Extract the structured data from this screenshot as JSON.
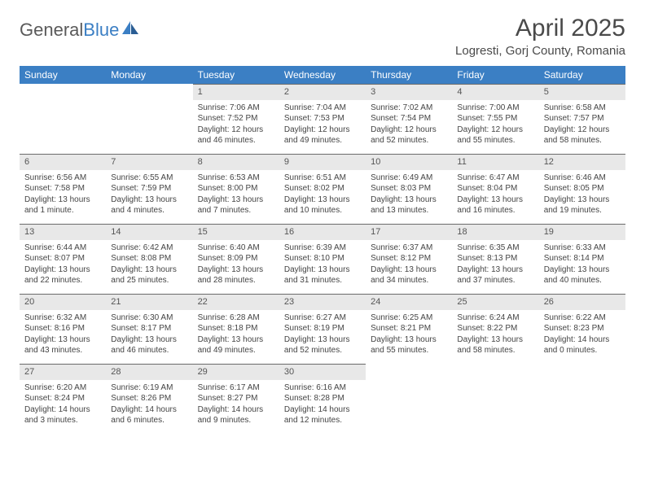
{
  "logo": {
    "text_general": "General",
    "text_blue": "Blue"
  },
  "title": "April 2025",
  "location": "Logresti, Gorj County, Romania",
  "colors": {
    "header_bg": "#3b7fc4",
    "header_text": "#ffffff",
    "daynum_bg": "#e8e8e8",
    "daynum_border": "#6b6b6b",
    "body_text": "#444444",
    "page_bg": "#ffffff"
  },
  "weekdays": [
    "Sunday",
    "Monday",
    "Tuesday",
    "Wednesday",
    "Thursday",
    "Friday",
    "Saturday"
  ],
  "weeks": [
    [
      null,
      null,
      {
        "n": "1",
        "sr": "7:06 AM",
        "ss": "7:52 PM",
        "dl": "12 hours and 46 minutes."
      },
      {
        "n": "2",
        "sr": "7:04 AM",
        "ss": "7:53 PM",
        "dl": "12 hours and 49 minutes."
      },
      {
        "n": "3",
        "sr": "7:02 AM",
        "ss": "7:54 PM",
        "dl": "12 hours and 52 minutes."
      },
      {
        "n": "4",
        "sr": "7:00 AM",
        "ss": "7:55 PM",
        "dl": "12 hours and 55 minutes."
      },
      {
        "n": "5",
        "sr": "6:58 AM",
        "ss": "7:57 PM",
        "dl": "12 hours and 58 minutes."
      }
    ],
    [
      {
        "n": "6",
        "sr": "6:56 AM",
        "ss": "7:58 PM",
        "dl": "13 hours and 1 minute."
      },
      {
        "n": "7",
        "sr": "6:55 AM",
        "ss": "7:59 PM",
        "dl": "13 hours and 4 minutes."
      },
      {
        "n": "8",
        "sr": "6:53 AM",
        "ss": "8:00 PM",
        "dl": "13 hours and 7 minutes."
      },
      {
        "n": "9",
        "sr": "6:51 AM",
        "ss": "8:02 PM",
        "dl": "13 hours and 10 minutes."
      },
      {
        "n": "10",
        "sr": "6:49 AM",
        "ss": "8:03 PM",
        "dl": "13 hours and 13 minutes."
      },
      {
        "n": "11",
        "sr": "6:47 AM",
        "ss": "8:04 PM",
        "dl": "13 hours and 16 minutes."
      },
      {
        "n": "12",
        "sr": "6:46 AM",
        "ss": "8:05 PM",
        "dl": "13 hours and 19 minutes."
      }
    ],
    [
      {
        "n": "13",
        "sr": "6:44 AM",
        "ss": "8:07 PM",
        "dl": "13 hours and 22 minutes."
      },
      {
        "n": "14",
        "sr": "6:42 AM",
        "ss": "8:08 PM",
        "dl": "13 hours and 25 minutes."
      },
      {
        "n": "15",
        "sr": "6:40 AM",
        "ss": "8:09 PM",
        "dl": "13 hours and 28 minutes."
      },
      {
        "n": "16",
        "sr": "6:39 AM",
        "ss": "8:10 PM",
        "dl": "13 hours and 31 minutes."
      },
      {
        "n": "17",
        "sr": "6:37 AM",
        "ss": "8:12 PM",
        "dl": "13 hours and 34 minutes."
      },
      {
        "n": "18",
        "sr": "6:35 AM",
        "ss": "8:13 PM",
        "dl": "13 hours and 37 minutes."
      },
      {
        "n": "19",
        "sr": "6:33 AM",
        "ss": "8:14 PM",
        "dl": "13 hours and 40 minutes."
      }
    ],
    [
      {
        "n": "20",
        "sr": "6:32 AM",
        "ss": "8:16 PM",
        "dl": "13 hours and 43 minutes."
      },
      {
        "n": "21",
        "sr": "6:30 AM",
        "ss": "8:17 PM",
        "dl": "13 hours and 46 minutes."
      },
      {
        "n": "22",
        "sr": "6:28 AM",
        "ss": "8:18 PM",
        "dl": "13 hours and 49 minutes."
      },
      {
        "n": "23",
        "sr": "6:27 AM",
        "ss": "8:19 PM",
        "dl": "13 hours and 52 minutes."
      },
      {
        "n": "24",
        "sr": "6:25 AM",
        "ss": "8:21 PM",
        "dl": "13 hours and 55 minutes."
      },
      {
        "n": "25",
        "sr": "6:24 AM",
        "ss": "8:22 PM",
        "dl": "13 hours and 58 minutes."
      },
      {
        "n": "26",
        "sr": "6:22 AM",
        "ss": "8:23 PM",
        "dl": "14 hours and 0 minutes."
      }
    ],
    [
      {
        "n": "27",
        "sr": "6:20 AM",
        "ss": "8:24 PM",
        "dl": "14 hours and 3 minutes."
      },
      {
        "n": "28",
        "sr": "6:19 AM",
        "ss": "8:26 PM",
        "dl": "14 hours and 6 minutes."
      },
      {
        "n": "29",
        "sr": "6:17 AM",
        "ss": "8:27 PM",
        "dl": "14 hours and 9 minutes."
      },
      {
        "n": "30",
        "sr": "6:16 AM",
        "ss": "8:28 PM",
        "dl": "14 hours and 12 minutes."
      },
      null,
      null,
      null
    ]
  ],
  "labels": {
    "sunrise": "Sunrise: ",
    "sunset": "Sunset: ",
    "daylight": "Daylight: "
  }
}
